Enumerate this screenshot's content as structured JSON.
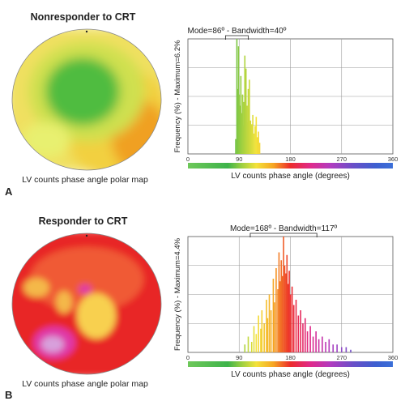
{
  "panels": [
    {
      "letter": "A",
      "title": "Nonresponder to CRT",
      "map_caption": "LV counts phase angle polar map",
      "polar_map": {
        "colors": [
          "#f0e060",
          "#cfe050",
          "#50bc40",
          "#f2d040",
          "#f0a020",
          "#e8f070"
        ]
      },
      "annotation": "Mode=86º - Bandwidth=40º",
      "ylabel": "Frequency (%) - Maximum=6.2%"
    },
    {
      "letter": "B",
      "title": "Responder to CRT",
      "map_caption": "LV counts phase angle polar map",
      "polar_map": {
        "colors": [
          "#e82828",
          "#f05a36",
          "#f4b848",
          "#f8d050",
          "#e038a8",
          "#d8a0dc"
        ]
      },
      "annotation": "Mode=168º - Bandwidth=117º",
      "ylabel": "Frequency (%) - Maximum=4.4%"
    }
  ],
  "chart_data": [
    {
      "type": "bar",
      "xlabel": "LV counts phase angle (degrees)",
      "ylabel": "Frequency (%) - Maximum=6.2%",
      "xlim": [
        0,
        360
      ],
      "ylim": [
        0,
        6.2
      ],
      "xticks": [
        "0",
        "90",
        "180",
        "270",
        "360"
      ],
      "grid": true,
      "mode_deg": 86,
      "bandwidth_deg": 40,
      "x": [
        84,
        86,
        87,
        88,
        89,
        90,
        91,
        92,
        93,
        94,
        95,
        96,
        97,
        98,
        99,
        100,
        101,
        102,
        103,
        104,
        105,
        106,
        107,
        108,
        110,
        112,
        114,
        116,
        118,
        120,
        122,
        124,
        126
      ],
      "values": [
        0.8,
        6.2,
        3.5,
        1.9,
        5.8,
        3.2,
        1.6,
        2.6,
        4.2,
        1.2,
        2.2,
        3.2,
        1.5,
        2.8,
        1.2,
        5.3,
        1.7,
        4.6,
        0.9,
        2.6,
        1.7,
        3.5,
        2.4,
        4.0,
        1.8,
        1.6,
        2.1,
        1.1,
        1.5,
        2.0,
        0.9,
        1.2,
        0.6
      ]
    },
    {
      "type": "bar",
      "xlabel": "LV counts phase angle (degrees)",
      "ylabel": "Frequency (%) - Maximum=4.4%",
      "xlim": [
        0,
        360
      ],
      "ylim": [
        0,
        4.4
      ],
      "xticks": [
        "0",
        "90",
        "180",
        "270",
        "360"
      ],
      "grid": true,
      "mode_deg": 168,
      "bandwidth_deg": 117,
      "x": [
        100,
        106,
        112,
        116,
        120,
        124,
        128,
        130,
        134,
        138,
        140,
        143,
        146,
        150,
        152,
        155,
        158,
        160,
        162,
        164,
        166,
        168,
        170,
        172,
        174,
        176,
        178,
        180,
        183,
        186,
        190,
        194,
        198,
        202,
        206,
        210,
        215,
        220,
        225,
        230,
        236,
        242,
        248,
        255,
        262,
        270,
        278,
        286
      ],
      "values": [
        0.3,
        0.6,
        0.4,
        1.0,
        0.7,
        1.4,
        0.9,
        1.6,
        1.1,
        2.0,
        1.3,
        2.2,
        1.6,
        2.8,
        1.9,
        3.2,
        2.4,
        3.8,
        2.7,
        3.5,
        2.9,
        4.4,
        3.3,
        3.0,
        3.7,
        2.6,
        3.1,
        2.2,
        2.5,
        1.8,
        2.0,
        1.4,
        1.6,
        1.1,
        1.3,
        0.8,
        1.0,
        0.6,
        0.8,
        0.5,
        0.6,
        0.4,
        0.5,
        0.3,
        0.3,
        0.2,
        0.2,
        0.1
      ]
    }
  ]
}
